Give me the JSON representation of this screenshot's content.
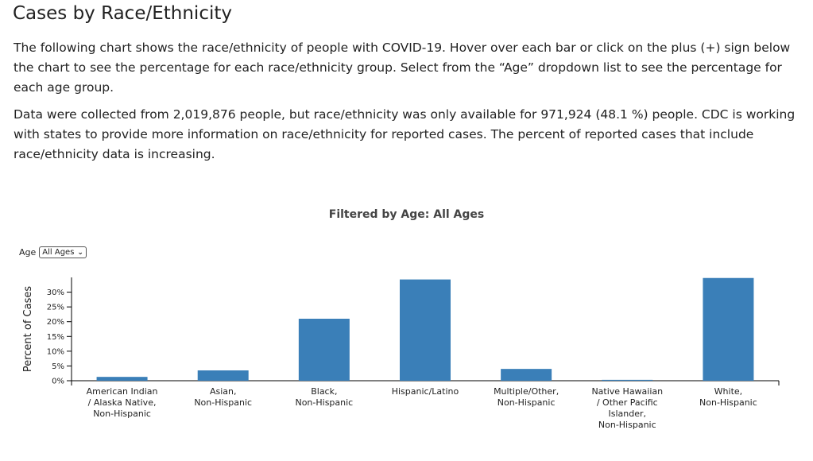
{
  "page": {
    "title": "Cases by Race/Ethnicity",
    "paragraph1": "The following chart shows the race/ethnicity of people with COVID-19. Hover over each bar or click on the plus (+) sign below the chart to see the percentage for each race/ethnicity group. Select from the “Age” dropdown list to see the percentage for each age group.",
    "paragraph2": "Data were collected from 2,019,876 people, but race/ethnicity was only available for 971,924 (48.1 %) people. CDC is working with states to provide more information on race/ethnicity for reported cases. The percent of reported cases that include race/ethnicity data is increasing."
  },
  "filter": {
    "label": "Age",
    "selected": "All Ages"
  },
  "chart_data": {
    "type": "bar",
    "title": "Filtered by Age: All Ages",
    "ylabel": "Percent of Cases",
    "xlabel": "",
    "ylim": [
      0,
      35
    ],
    "yticks": [
      "0%",
      "5%",
      "10%",
      "15%",
      "20%",
      "25%",
      "30%"
    ],
    "categories": [
      [
        "American Indian",
        "/ Alaska Native,",
        "Non-Hispanic"
      ],
      [
        "Asian,",
        "Non-Hispanic"
      ],
      [
        "Black,",
        "Non-Hispanic"
      ],
      [
        "Hispanic/Latino"
      ],
      [
        "Multiple/Other,",
        "Non-Hispanic"
      ],
      [
        "Native Hawaiian",
        "/ Other Pacific",
        "Islander,",
        "Non-Hispanic"
      ],
      [
        "White,",
        "Non-Hispanic"
      ]
    ],
    "values": [
      1.3,
      3.5,
      21.0,
      34.3,
      4.0,
      0.3,
      34.8
    ],
    "bar_color": "#3a7fb8",
    "grid": false
  }
}
